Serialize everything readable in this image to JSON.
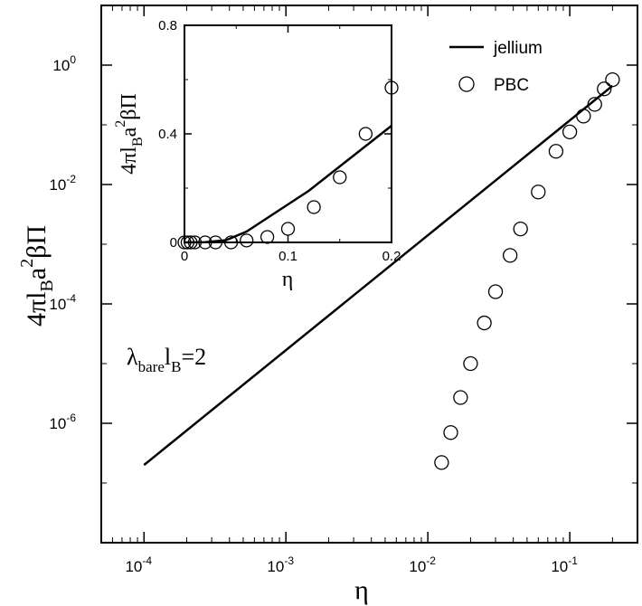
{
  "chart_data": [
    {
      "type": "line+scatter",
      "xscale": "log",
      "yscale": "log",
      "xlim": [
        5e-05,
        0.3
      ],
      "ylim": [
        1e-08,
        10
      ],
      "xticks": [
        0.0001,
        0.001,
        0.01,
        0.1
      ],
      "xtick_base": [
        "10",
        "10",
        "10",
        "10"
      ],
      "xtick_exp": [
        "-4",
        "-3",
        "-2",
        "-1"
      ],
      "yticks": [
        1e-06,
        0.0001,
        0.01,
        1
      ],
      "ytick_base": [
        "10",
        "10",
        "10",
        "10"
      ],
      "ytick_exp": [
        "-6",
        "-4",
        "-2",
        "0"
      ],
      "xlabel": "η",
      "ylabel": {
        "a": "4πl",
        "b": "B",
        "c": "a",
        "d": "2",
        "e": "βΠ"
      },
      "annotation": {
        "a": "λ",
        "b": "bare",
        "c": "l",
        "d": "B",
        "e": "=2"
      },
      "legend_position": "top-right",
      "series": [
        {
          "name": "jellium",
          "style": "line",
          "x": [
            0.0001,
            0.2
          ],
          "y": [
            2e-07,
            0.45
          ]
        },
        {
          "name": "PBC",
          "style": "circles",
          "x": [
            0.0125,
            0.0145,
            0.017,
            0.02,
            0.025,
            0.03,
            0.038,
            0.045,
            0.06,
            0.08,
            0.1,
            0.125,
            0.15,
            0.175,
            0.2
          ],
          "y": [
            2.2e-07,
            7e-07,
            2.7e-06,
            1e-05,
            4.8e-05,
            0.00016,
            0.00065,
            0.0018,
            0.0075,
            0.036,
            0.076,
            0.14,
            0.22,
            0.4,
            0.57
          ]
        }
      ]
    },
    {
      "type": "line+scatter",
      "inset": true,
      "xscale": "linear",
      "yscale": "linear",
      "xlim": [
        0,
        0.2
      ],
      "ylim": [
        0,
        0.8
      ],
      "xticks": [
        0,
        0.1,
        0.2
      ],
      "xtick_labels": [
        "0",
        "0.1",
        "0.2"
      ],
      "yticks": [
        0,
        0.4,
        0.8
      ],
      "ytick_labels": [
        "0",
        "0.4",
        "0.8"
      ],
      "xlabel": "η",
      "ylabel": {
        "a": "4πl",
        "b": "B",
        "c": "a",
        "d": "2",
        "e": "βΠ"
      },
      "series": [
        {
          "name": "jellium",
          "style": "line",
          "x": [
            0,
            0.02,
            0.04,
            0.06,
            0.08,
            0.1,
            0.12,
            0.14,
            0.16,
            0.18,
            0.2
          ],
          "y": [
            0,
            0.001,
            0.008,
            0.04,
            0.09,
            0.14,
            0.19,
            0.25,
            0.31,
            0.37,
            0.43
          ]
        },
        {
          "name": "PBC",
          "style": "circles",
          "x": [
            0.0,
            0.003,
            0.006,
            0.01,
            0.02,
            0.03,
            0.045,
            0.06,
            0.08,
            0.1,
            0.125,
            0.15,
            0.175,
            0.2
          ],
          "y": [
            0,
            0,
            0,
            0,
            0,
            0,
            0,
            0.007,
            0.02,
            0.05,
            0.13,
            0.24,
            0.4,
            0.57
          ]
        }
      ]
    }
  ],
  "legend": {
    "jellium": "jellium",
    "pbc": "PBC"
  }
}
